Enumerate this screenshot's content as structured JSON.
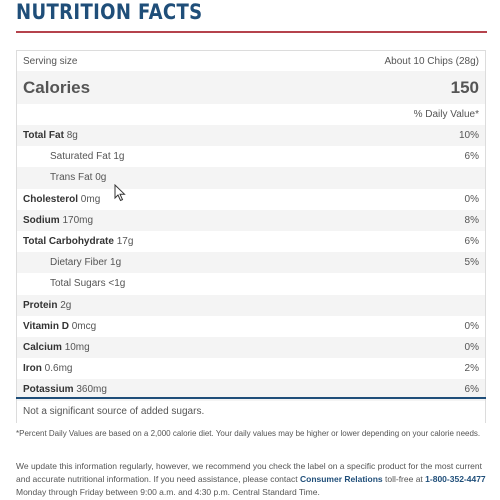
{
  "title": "NUTRITION FACTS",
  "serving": {
    "label": "Serving size",
    "value": "About 10 Chips (28g)"
  },
  "calories": {
    "label": "Calories",
    "value": "150"
  },
  "dv_header": "% Daily Value*",
  "nutrients": [
    {
      "name": "Total Fat",
      "amount": "8g",
      "dv": "10%",
      "bold": true,
      "indent": false
    },
    {
      "name": "Saturated Fat",
      "amount": "1g",
      "dv": "6%",
      "bold": false,
      "indent": true
    },
    {
      "name": "Trans Fat",
      "amount": "0g",
      "dv": "",
      "bold": false,
      "indent": true
    },
    {
      "name": "Cholesterol",
      "amount": "0mg",
      "dv": "0%",
      "bold": true,
      "indent": false
    },
    {
      "name": "Sodium",
      "amount": "170mg",
      "dv": "8%",
      "bold": true,
      "indent": false
    },
    {
      "name": "Total Carbohydrate",
      "amount": "17g",
      "dv": "6%",
      "bold": true,
      "indent": false
    },
    {
      "name": "Dietary Fiber",
      "amount": "1g",
      "dv": "5%",
      "bold": false,
      "indent": true
    },
    {
      "name": "Total Sugars",
      "amount": "<1g",
      "dv": "",
      "bold": false,
      "indent": true
    },
    {
      "name": "Protein",
      "amount": "2g",
      "dv": "",
      "bold": true,
      "indent": false
    },
    {
      "name": "Vitamin D",
      "amount": "0mcg",
      "dv": "0%",
      "bold": true,
      "indent": false
    },
    {
      "name": "Calcium",
      "amount": "10mg",
      "dv": "0%",
      "bold": true,
      "indent": false
    },
    {
      "name": "Iron",
      "amount": "0.6mg",
      "dv": "2%",
      "bold": true,
      "indent": false
    },
    {
      "name": "Potassium",
      "amount": "360mg",
      "dv": "6%",
      "bold": true,
      "indent": false
    }
  ],
  "added_sugars_note": "Not a significant source of added sugars.",
  "footnote": "*Percent Daily Values are based on a 2,000 calorie diet. Your daily values may be higher or lower depending on your calorie needs.",
  "update_note": {
    "before": "We update this information regularly, however, we recommend you check the label on a specific product for the most current and accurate nutritional information. If you need assistance, please contact ",
    "contact": "Consumer Relations",
    "middle": " toll-free at ",
    "phone": "1-800-352-4477",
    "after": " Monday through Friday between 9:00 a.m. and 4:30 p.m. Central Standard Time."
  },
  "colors": {
    "accent": "#1f4e79",
    "rule": "#b5434c"
  },
  "icons": {
    "cursor": "mouse-pointer-icon"
  }
}
